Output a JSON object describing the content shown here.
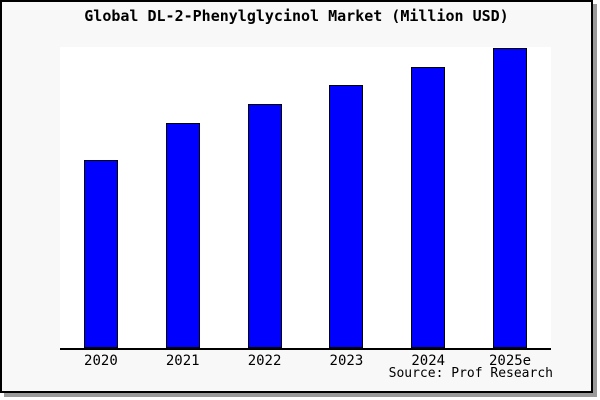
{
  "title": "Global DL-2-Phenylglycinol Market (Million USD)",
  "source": "Source: Prof Research",
  "colors": {
    "card_background": "#f8f8f8",
    "plot_background": "#ffffff",
    "border": "#000000",
    "shadow": "#9a9a9a",
    "bar_fill": "#0000ff",
    "bar_outline": "#000000",
    "text": "#000000"
  },
  "chart_data": {
    "type": "bar",
    "title": "Global DL-2-Phenylglycinol Market (Million USD)",
    "categories": [
      "2020",
      "2021",
      "2022",
      "2023",
      "2024",
      "2025e"
    ],
    "values": [
      62.7,
      75.0,
      81.3,
      87.7,
      93.7,
      100.0
    ],
    "value_note": "y-axis has no tick labels in the image; values are relative bar heights normalized so 2025e = 100",
    "xlabel": "",
    "ylabel": "",
    "ylim": [
      0,
      100
    ],
    "grid": false,
    "legend": null,
    "bar_color": "#0000ff",
    "bar_border_color": "#000000",
    "axes_shown": [
      "bottom"
    ],
    "source_label": "Source: Prof Research"
  }
}
